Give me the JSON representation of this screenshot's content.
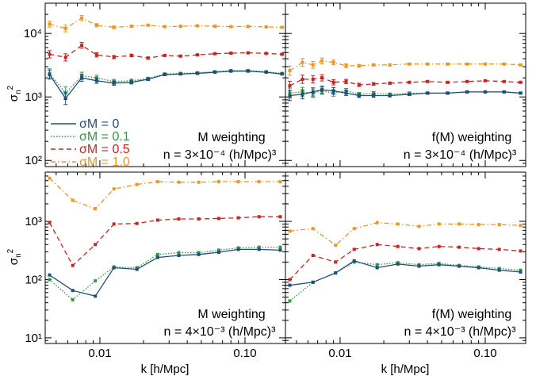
{
  "chart_data": {
    "type": "line",
    "xscale": "log",
    "yscale": "log",
    "xlim": [
      0.0042,
      0.19
    ],
    "xticks": [
      "0.01",
      "0.10"
    ],
    "xlabel": "k [h/Mpc]",
    "ylabel": "σn2",
    "legend": {
      "placement": "left of top-left panel, lower half",
      "entries": [
        "σM = 0",
        "σM = 0.1",
        "σM = 0.5",
        "σM = 1.0"
      ]
    },
    "colors": {
      "s0": "#1f4e79",
      "s01": "#2e9a44",
      "s05": "#cc2222",
      "s10": "#f0961e"
    },
    "panels": [
      {
        "id": "top-left",
        "annotation_line1": "M weighting",
        "annotation_line2": "n = 3×10⁻⁴ (h/Mpc)³",
        "ylim": [
          80,
          30000
        ],
        "yticks": [
          "10²",
          "10³",
          "10⁴"
        ],
        "x": [
          0.0045,
          0.0058,
          0.0075,
          0.0095,
          0.0125,
          0.0165,
          0.0215,
          0.028,
          0.036,
          0.047,
          0.062,
          0.08,
          0.105,
          0.14,
          0.18
        ],
        "series": [
          {
            "name": "σM = 0",
            "values": [
              2250,
              950,
              2000,
              1800,
              1650,
              1700,
              1900,
              2250,
              2300,
              2350,
              2450,
              2550,
              2550,
              2450,
              2300
            ],
            "err": [
              0.18,
              0.25,
              0.14,
              0.1,
              0.08,
              0.06,
              0.05,
              0.04,
              0.03,
              0.03,
              0.02,
              0.02,
              0.02,
              0.02,
              0.02
            ]
          },
          {
            "name": "σM = 0.1",
            "values": [
              2350,
              1150,
              2150,
              2000,
              1750,
              1800,
              1950,
              2300,
              2350,
              2400,
              2500,
              2600,
              2600,
              2500,
              2350
            ],
            "err": [
              0.18,
              0.25,
              0.14,
              0.1,
              0.08,
              0.06,
              0.05,
              0.04,
              0.03,
              0.03,
              0.02,
              0.02,
              0.02,
              0.02,
              0.02
            ]
          },
          {
            "name": "σM = 0.5",
            "values": [
              4700,
              4200,
              6500,
              4600,
              4250,
              4500,
              4100,
              4500,
              4400,
              4600,
              4800,
              4900,
              4950,
              4850,
              4700
            ],
            "err": [
              0.14,
              0.14,
              0.11,
              0.08,
              0.06,
              0.05,
              0.04,
              0.03,
              0.03,
              0.02,
              0.02,
              0.02,
              0.02,
              0.02,
              0.02
            ]
          },
          {
            "name": "σM = 1.0",
            "values": [
              14000,
              12000,
              17500,
              13500,
              12500,
              13000,
              13500,
              12800,
              13000,
              13200,
              13000,
              12800,
              12900,
              12700,
              12500
            ],
            "err": [
              0.11,
              0.13,
              0.1,
              0.06,
              0.05,
              0.04,
              0.03,
              0.03,
              0.02,
              0.02,
              0.02,
              0.02,
              0.02,
              0.02,
              0.02
            ]
          }
        ]
      },
      {
        "id": "top-right",
        "annotation_line1": "f(M) weighting",
        "annotation_line2": "n = 3×10⁻⁴ (h/Mpc)³",
        "ylim": [
          80,
          30000
        ],
        "yticks": [],
        "x": [
          0.0045,
          0.0055,
          0.0065,
          0.0075,
          0.009,
          0.011,
          0.0135,
          0.017,
          0.022,
          0.03,
          0.04,
          0.055,
          0.075,
          0.1,
          0.135,
          0.175
        ],
        "series": [
          {
            "name": "σM = 0",
            "values": [
              1050,
              1100,
              1200,
              1300,
              1250,
              1150,
              1050,
              1050,
              1050,
              1100,
              1150,
              1150,
              1200,
              1200,
              1200,
              1150
            ],
            "err": [
              0.2,
              0.18,
              0.16,
              0.14,
              0.12,
              0.09,
              0.07,
              0.06,
              0.05,
              0.04,
              0.03,
              0.03,
              0.02,
              0.02,
              0.02,
              0.02
            ]
          },
          {
            "name": "σM = 0.1",
            "values": [
              1150,
              1200,
              1150,
              1250,
              1150,
              1250,
              1100,
              1150,
              1100,
              1150,
              1150,
              1150,
              1200,
              1200,
              1200,
              1150
            ],
            "err": [
              0.2,
              0.18,
              0.16,
              0.14,
              0.12,
              0.09,
              0.07,
              0.06,
              0.05,
              0.04,
              0.03,
              0.03,
              0.02,
              0.02,
              0.02,
              0.02
            ]
          },
          {
            "name": "σM = 0.5",
            "values": [
              1500,
              1900,
              1900,
              2000,
              1700,
              1750,
              1550,
              1600,
              1650,
              1700,
              1750,
              1700,
              1750,
              1800,
              1750,
              1700
            ],
            "err": [
              0.18,
              0.16,
              0.14,
              0.12,
              0.1,
              0.08,
              0.06,
              0.05,
              0.04,
              0.03,
              0.03,
              0.02,
              0.02,
              0.02,
              0.02,
              0.02
            ]
          },
          {
            "name": "σM = 1.0",
            "values": [
              2600,
              3500,
              3200,
              3700,
              3500,
              3100,
              3100,
              3200,
              3200,
              3300,
              3300,
              3300,
              3300,
              3300,
              3300,
              3200
            ],
            "err": [
              0.18,
              0.15,
              0.13,
              0.11,
              0.09,
              0.07,
              0.05,
              0.04,
              0.04,
              0.03,
              0.02,
              0.02,
              0.02,
              0.02,
              0.02,
              0.02
            ]
          }
        ]
      },
      {
        "id": "bottom-left",
        "annotation_line1": "M weighting",
        "annotation_line2": "n = 4×10⁻³ (h/Mpc)³",
        "ylim": [
          8,
          7000
        ],
        "yticks": [
          "10¹",
          "10²",
          "10³"
        ],
        "x": [
          0.0045,
          0.0065,
          0.0093,
          0.0125,
          0.018,
          0.025,
          0.035,
          0.048,
          0.066,
          0.09,
          0.125,
          0.175
        ],
        "series": [
          {
            "name": "σM = 0",
            "values": [
              120,
              65,
              52,
              160,
              150,
              240,
              260,
              270,
              295,
              330,
              330,
              320
            ]
          },
          {
            "name": "σM = 0.1",
            "values": [
              100,
              45,
              95,
              165,
              160,
              270,
              290,
              290,
              320,
              350,
              360,
              360
            ]
          },
          {
            "name": "σM = 0.5",
            "values": [
              950,
              175,
              400,
              900,
              920,
              1050,
              1100,
              1100,
              1120,
              1150,
              1200,
              1200
            ]
          },
          {
            "name": "σM = 1.0",
            "values": [
              5500,
              2300,
              1650,
              3600,
              4300,
              4800,
              4700,
              4700,
              4800,
              4800,
              4800,
              4800
            ]
          }
        ]
      },
      {
        "id": "bottom-right",
        "annotation_line1": "f(M) weighting",
        "annotation_line2": "n = 4×10⁻³ (h/Mpc)³",
        "ylim": [
          8,
          7000
        ],
        "yticks": [],
        "x": [
          0.0045,
          0.0065,
          0.0093,
          0.0125,
          0.018,
          0.025,
          0.035,
          0.048,
          0.066,
          0.09,
          0.125,
          0.175
        ],
        "series": [
          {
            "name": "σM = 0",
            "values": [
              80,
              90,
              130,
              210,
              160,
              185,
              170,
              180,
              170,
              160,
              145,
              135
            ]
          },
          {
            "name": "σM = 0.1",
            "values": [
              43,
              90,
              130,
              200,
              180,
              195,
              180,
              190,
              175,
              165,
              155,
              145
            ]
          },
          {
            "name": "σM = 0.5",
            "values": [
              100,
              260,
              200,
              330,
              400,
              370,
              340,
              370,
              360,
              340,
              330,
              310
            ]
          },
          {
            "name": "σM = 1.0",
            "values": [
              680,
              750,
              390,
              750,
              950,
              900,
              820,
              900,
              900,
              880,
              880,
              850
            ]
          }
        ]
      }
    ]
  }
}
